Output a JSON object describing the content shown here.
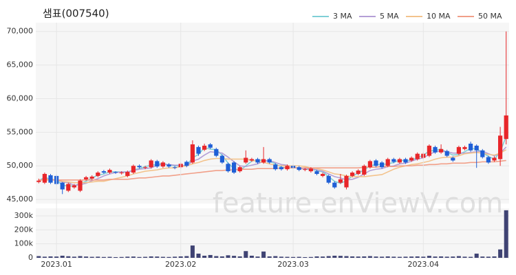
{
  "chart_data": [
    {
      "type": "candlestick",
      "title": "샘표(007540)",
      "watermark": "feature.enViewV.com",
      "up_color": "#e8262a",
      "down_color": "#1f5fd6",
      "legend": "upper right",
      "grid": true,
      "ylim": [
        44400,
        71300
      ],
      "yticks": [
        {
          "value": 45000,
          "label": "45,000"
        },
        {
          "value": 50000,
          "label": "50,000"
        },
        {
          "value": 55000,
          "label": "55,000"
        },
        {
          "value": 60000,
          "label": "60,000"
        },
        {
          "value": 65000,
          "label": "65,000"
        },
        {
          "value": 70000,
          "label": "70,000"
        }
      ],
      "open": [
        47600,
        47500,
        48600,
        48500,
        47500,
        46300,
        46800,
        46300,
        48000,
        48100,
        48500,
        49200,
        49000,
        49100,
        48900,
        48500,
        49000,
        50000,
        49700,
        49800,
        50700,
        49900,
        50200,
        49800,
        49800,
        50600,
        50500,
        52800,
        52400,
        53200,
        52500,
        51500,
        50300,
        50500,
        49200,
        50500,
        50800,
        51000,
        50500,
        51000,
        50200,
        49800,
        49500,
        50000,
        49800,
        49400,
        49200,
        49200,
        48500,
        48500,
        47500,
        47500,
        46800,
        48500,
        48800,
        48700,
        49800,
        50800,
        50500,
        50000,
        51000,
        50500,
        51000,
        50800,
        51000,
        51200,
        51500,
        52800,
        52000,
        52200,
        51200,
        51800,
        52500,
        53300,
        53000,
        52300,
        51300,
        50800,
        51000,
        54000
      ],
      "high": [
        48100,
        49000,
        48800,
        48700,
        47600,
        47500,
        47300,
        48000,
        48500,
        48600,
        49200,
        49400,
        49600,
        49200,
        49200,
        49300,
        50200,
        50200,
        50000,
        51000,
        50900,
        50700,
        50400,
        50000,
        50500,
        50800,
        53800,
        53000,
        53300,
        53400,
        52700,
        51700,
        50500,
        50700,
        50000,
        52300,
        51200,
        51200,
        52800,
        51200,
        50400,
        50000,
        50200,
        50200,
        50000,
        49700,
        49800,
        49400,
        49000,
        48700,
        47700,
        48800,
        48700,
        49200,
        49500,
        50200,
        50900,
        51000,
        50700,
        51200,
        51200,
        51200,
        51200,
        51400,
        52000,
        52000,
        53200,
        53000,
        53200,
        52400,
        51400,
        53000,
        53000,
        53600,
        53200,
        52500,
        51500,
        51400,
        55800,
        70000
      ],
      "low": [
        47400,
        47300,
        47300,
        47100,
        45800,
        46100,
        46600,
        46100,
        47800,
        47900,
        48300,
        48800,
        48800,
        48800,
        48700,
        48300,
        48800,
        49600,
        49500,
        49600,
        49700,
        49700,
        49700,
        49500,
        49600,
        49800,
        50300,
        51500,
        52200,
        52500,
        51300,
        50300,
        49000,
        48800,
        49000,
        50300,
        50600,
        50300,
        50300,
        50300,
        49300,
        49300,
        49300,
        49500,
        49200,
        49200,
        49000,
        48600,
        48300,
        47300,
        46600,
        47300,
        46500,
        48300,
        48600,
        48500,
        49600,
        49800,
        49600,
        49800,
        50400,
        50300,
        50300,
        50600,
        50800,
        51000,
        51300,
        51800,
        51800,
        51300,
        50600,
        51600,
        52300,
        52100,
        49700,
        51100,
        50300,
        50600,
        50000,
        53200
      ],
      "close": [
        47800,
        48800,
        47500,
        47300,
        46500,
        47300,
        47100,
        47800,
        48300,
        48400,
        49000,
        49000,
        49400,
        49000,
        49000,
        49100,
        50000,
        49800,
        49800,
        50800,
        49900,
        50500,
        49900,
        49700,
        50300,
        50000,
        53200,
        51800,
        53000,
        52700,
        51500,
        50500,
        49200,
        49000,
        49800,
        51200,
        51000,
        50500,
        51000,
        50500,
        49500,
        49500,
        50000,
        49700,
        49400,
        49500,
        49600,
        48800,
        48800,
        47500,
        46800,
        48000,
        48500,
        49000,
        49300,
        50000,
        50700,
        50000,
        49800,
        51000,
        50600,
        51000,
        50500,
        51200,
        51800,
        51800,
        53000,
        52000,
        52500,
        51500,
        50800,
        52800,
        52800,
        52300,
        52300,
        51300,
        50500,
        51200,
        54500,
        57500
      ],
      "series": [
        {
          "name": "3 MA",
          "color": "#7fcfd6",
          "values": [
            47800,
            48300,
            48000,
            47900,
            47100,
            47000,
            47000,
            47400,
            47700,
            48200,
            48600,
            48800,
            49100,
            49100,
            49100,
            49000,
            49400,
            49600,
            49900,
            50100,
            50200,
            50400,
            50100,
            50000,
            50000,
            50000,
            51200,
            51700,
            52700,
            52500,
            52400,
            51600,
            50400,
            49600,
            49300,
            50000,
            50700,
            50900,
            50800,
            50700,
            50300,
            49800,
            49700,
            49700,
            49700,
            49500,
            49500,
            49300,
            49100,
            48400,
            47700,
            47400,
            47800,
            48500,
            48900,
            49400,
            50000,
            50200,
            50200,
            50300,
            50500,
            50900,
            50700,
            50900,
            51200,
            51600,
            52200,
            52300,
            52500,
            52000,
            51600,
            51700,
            52100,
            52600,
            52500,
            52000,
            51400,
            51000,
            52100,
            54400
          ]
        },
        {
          "name": "5 MA",
          "color": "#b49fd6",
          "values": [
            47800,
            48100,
            48000,
            47900,
            47600,
            47500,
            47100,
            47200,
            47400,
            47800,
            48100,
            48500,
            48800,
            49000,
            49100,
            49100,
            49300,
            49500,
            49600,
            49700,
            50100,
            50200,
            50200,
            50100,
            50100,
            50000,
            50700,
            51000,
            51600,
            52100,
            52000,
            51900,
            51300,
            50600,
            50000,
            49900,
            50100,
            50300,
            50700,
            50800,
            50500,
            50200,
            50100,
            49800,
            49600,
            49600,
            49600,
            49400,
            49200,
            48800,
            48400,
            48200,
            47900,
            48000,
            48300,
            48800,
            49300,
            49500,
            49600,
            49900,
            50000,
            50300,
            50400,
            50700,
            51000,
            51200,
            51700,
            52100,
            52200,
            52100,
            51900,
            51900,
            51900,
            52000,
            52100,
            52200,
            51800,
            51500,
            51900,
            52800
          ]
        },
        {
          "name": "10 MA",
          "color": "#f3c38c",
          "values": [
            47800,
            48000,
            48000,
            47900,
            47700,
            47600,
            47500,
            47500,
            47500,
            47600,
            47700,
            47700,
            47900,
            48100,
            48300,
            48500,
            48800,
            49000,
            49200,
            49300,
            49400,
            49600,
            49700,
            49700,
            49900,
            50000,
            50300,
            50500,
            50800,
            51000,
            51100,
            51100,
            51000,
            51000,
            51000,
            51000,
            50800,
            50700,
            50500,
            50300,
            50100,
            50000,
            50000,
            50000,
            50000,
            49900,
            49700,
            49600,
            49400,
            49100,
            48800,
            48700,
            48500,
            48400,
            48400,
            48400,
            48500,
            48600,
            48700,
            49100,
            49500,
            49800,
            50000,
            50200,
            50300,
            50500,
            50700,
            51000,
            51200,
            51300,
            51300,
            51500,
            51800,
            51900,
            52000,
            51900,
            51700,
            51600,
            51900,
            52400
          ]
        },
        {
          "name": "50 MA",
          "color": "#f19f88",
          "values": [
            47900,
            47900,
            47900,
            47900,
            47900,
            47900,
            47900,
            47900,
            47900,
            47900,
            47900,
            47900,
            48000,
            48000,
            48000,
            48000,
            48100,
            48200,
            48200,
            48300,
            48400,
            48500,
            48500,
            48600,
            48700,
            48800,
            48900,
            49000,
            49100,
            49200,
            49300,
            49300,
            49400,
            49400,
            49500,
            49500,
            49500,
            49600,
            49600,
            49600,
            49600,
            49700,
            49700,
            49700,
            49700,
            49700,
            49700,
            49700,
            49700,
            49700,
            49700,
            49700,
            49700,
            49700,
            49700,
            49800,
            49800,
            49800,
            49900,
            49900,
            49900,
            50000,
            50000,
            50000,
            50100,
            50100,
            50200,
            50200,
            50300,
            50300,
            50400,
            50400,
            50400,
            50500,
            50500,
            50600,
            50600,
            50600,
            50700,
            50800
          ]
        }
      ]
    },
    {
      "type": "bar",
      "color": "#3f4373",
      "grid": true,
      "ylim": [
        0,
        354000
      ],
      "yticks": [
        0,
        {
          "value": 100000,
          "label": "100k"
        },
        {
          "value": 200000,
          "label": "200k"
        },
        {
          "value": 300000,
          "label": "300k"
        }
      ],
      "categories": [
        null,
        null,
        null,
        "2023.01",
        null,
        null,
        null,
        null,
        null,
        null,
        null,
        null,
        null,
        null,
        null,
        null,
        null,
        null,
        null,
        null,
        null,
        null,
        null,
        null,
        "2023.02",
        null,
        null,
        null,
        null,
        null,
        null,
        null,
        null,
        null,
        null,
        null,
        null,
        null,
        null,
        null,
        null,
        null,
        null,
        "2023.03",
        null,
        null,
        null,
        null,
        null,
        null,
        null,
        null,
        null,
        null,
        null,
        null,
        null,
        null,
        null,
        null,
        null,
        null,
        null,
        null,
        null,
        "2023.04",
        null,
        null,
        null,
        null,
        null,
        null,
        null,
        null,
        null,
        null,
        null,
        null,
        null,
        null
      ],
      "values": [
        12000,
        8000,
        10000,
        9000,
        15000,
        11000,
        8000,
        12000,
        9000,
        7000,
        8000,
        6000,
        7000,
        5000,
        6000,
        8000,
        9000,
        6000,
        7000,
        10000,
        9000,
        7000,
        6000,
        8000,
        10000,
        12000,
        88000,
        30000,
        15000,
        20000,
        12000,
        10000,
        18000,
        14000,
        10000,
        48000,
        15000,
        9000,
        45000,
        10000,
        12000,
        8000,
        7000,
        6000,
        7000,
        5000,
        6000,
        10000,
        9000,
        12000,
        15000,
        14000,
        12000,
        10000,
        9000,
        10000,
        12000,
        9000,
        8000,
        10000,
        8000,
        7000,
        8000,
        9000,
        10000,
        8000,
        14000,
        9000,
        10000,
        8000,
        9000,
        12000,
        8000,
        7000,
        30000,
        9000,
        8000,
        10000,
        60000,
        340000
      ]
    }
  ]
}
